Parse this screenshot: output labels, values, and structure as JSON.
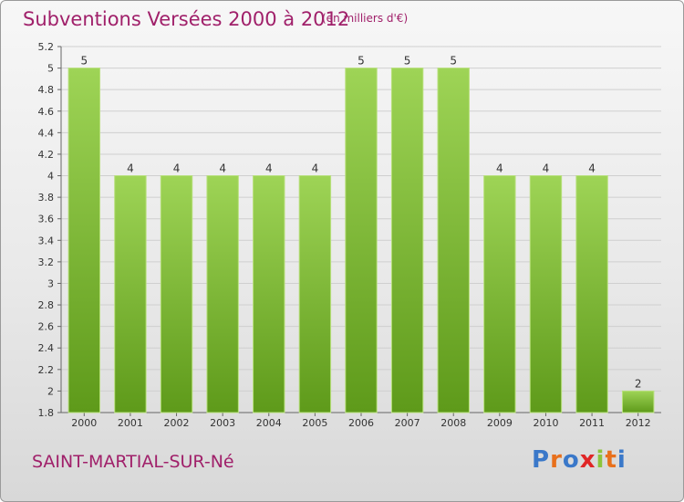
{
  "header": {
    "title": "Subventions Versées 2000 à 2012",
    "unit": "(en milliers d'€)"
  },
  "footer": {
    "commune": "SAINT-MARTIAL-SUR-Né",
    "logo": "Proxiti"
  },
  "colors": {
    "title": "#a0206a",
    "bar_light": "#9ed456",
    "bar_dark": "#5e9a1a",
    "logo": [
      "#3a78c9",
      "#e8701c",
      "#3a78c9",
      "#e02626",
      "#8cc43c",
      "#e8701c",
      "#3a78c9"
    ]
  },
  "chart_data": {
    "type": "bar",
    "title": "Subventions Versées 2000 à 2012",
    "subtitle": "(en milliers d'€)",
    "categories": [
      "2000",
      "2001",
      "2002",
      "2003",
      "2004",
      "2005",
      "2006",
      "2007",
      "2008",
      "2009",
      "2010",
      "2011",
      "2012"
    ],
    "values": [
      5,
      4,
      4,
      4,
      4,
      4,
      5,
      5,
      5,
      4,
      4,
      4,
      2
    ],
    "data_labels": [
      "5",
      "4",
      "4",
      "4",
      "4",
      "4",
      "5",
      "5",
      "5",
      "4",
      "4",
      "4",
      "2"
    ],
    "ylim": [
      1.8,
      5.2
    ],
    "yticks": [
      1.8,
      2,
      2.2,
      2.4,
      2.6,
      2.8,
      3,
      3.2,
      3.4,
      3.6,
      3.8,
      4,
      4.2,
      4.4,
      4.6,
      4.8,
      5,
      5.2
    ],
    "ytick_labels": [
      "1.8",
      "2",
      "2.2",
      "2.4",
      "2.6",
      "2.8",
      "3",
      "3.2",
      "3.4",
      "3.6",
      "3.8",
      "4",
      "4.2",
      "4.4",
      "4.6",
      "4.8",
      "5",
      "5.2"
    ],
    "grid": true,
    "legend": "none"
  }
}
